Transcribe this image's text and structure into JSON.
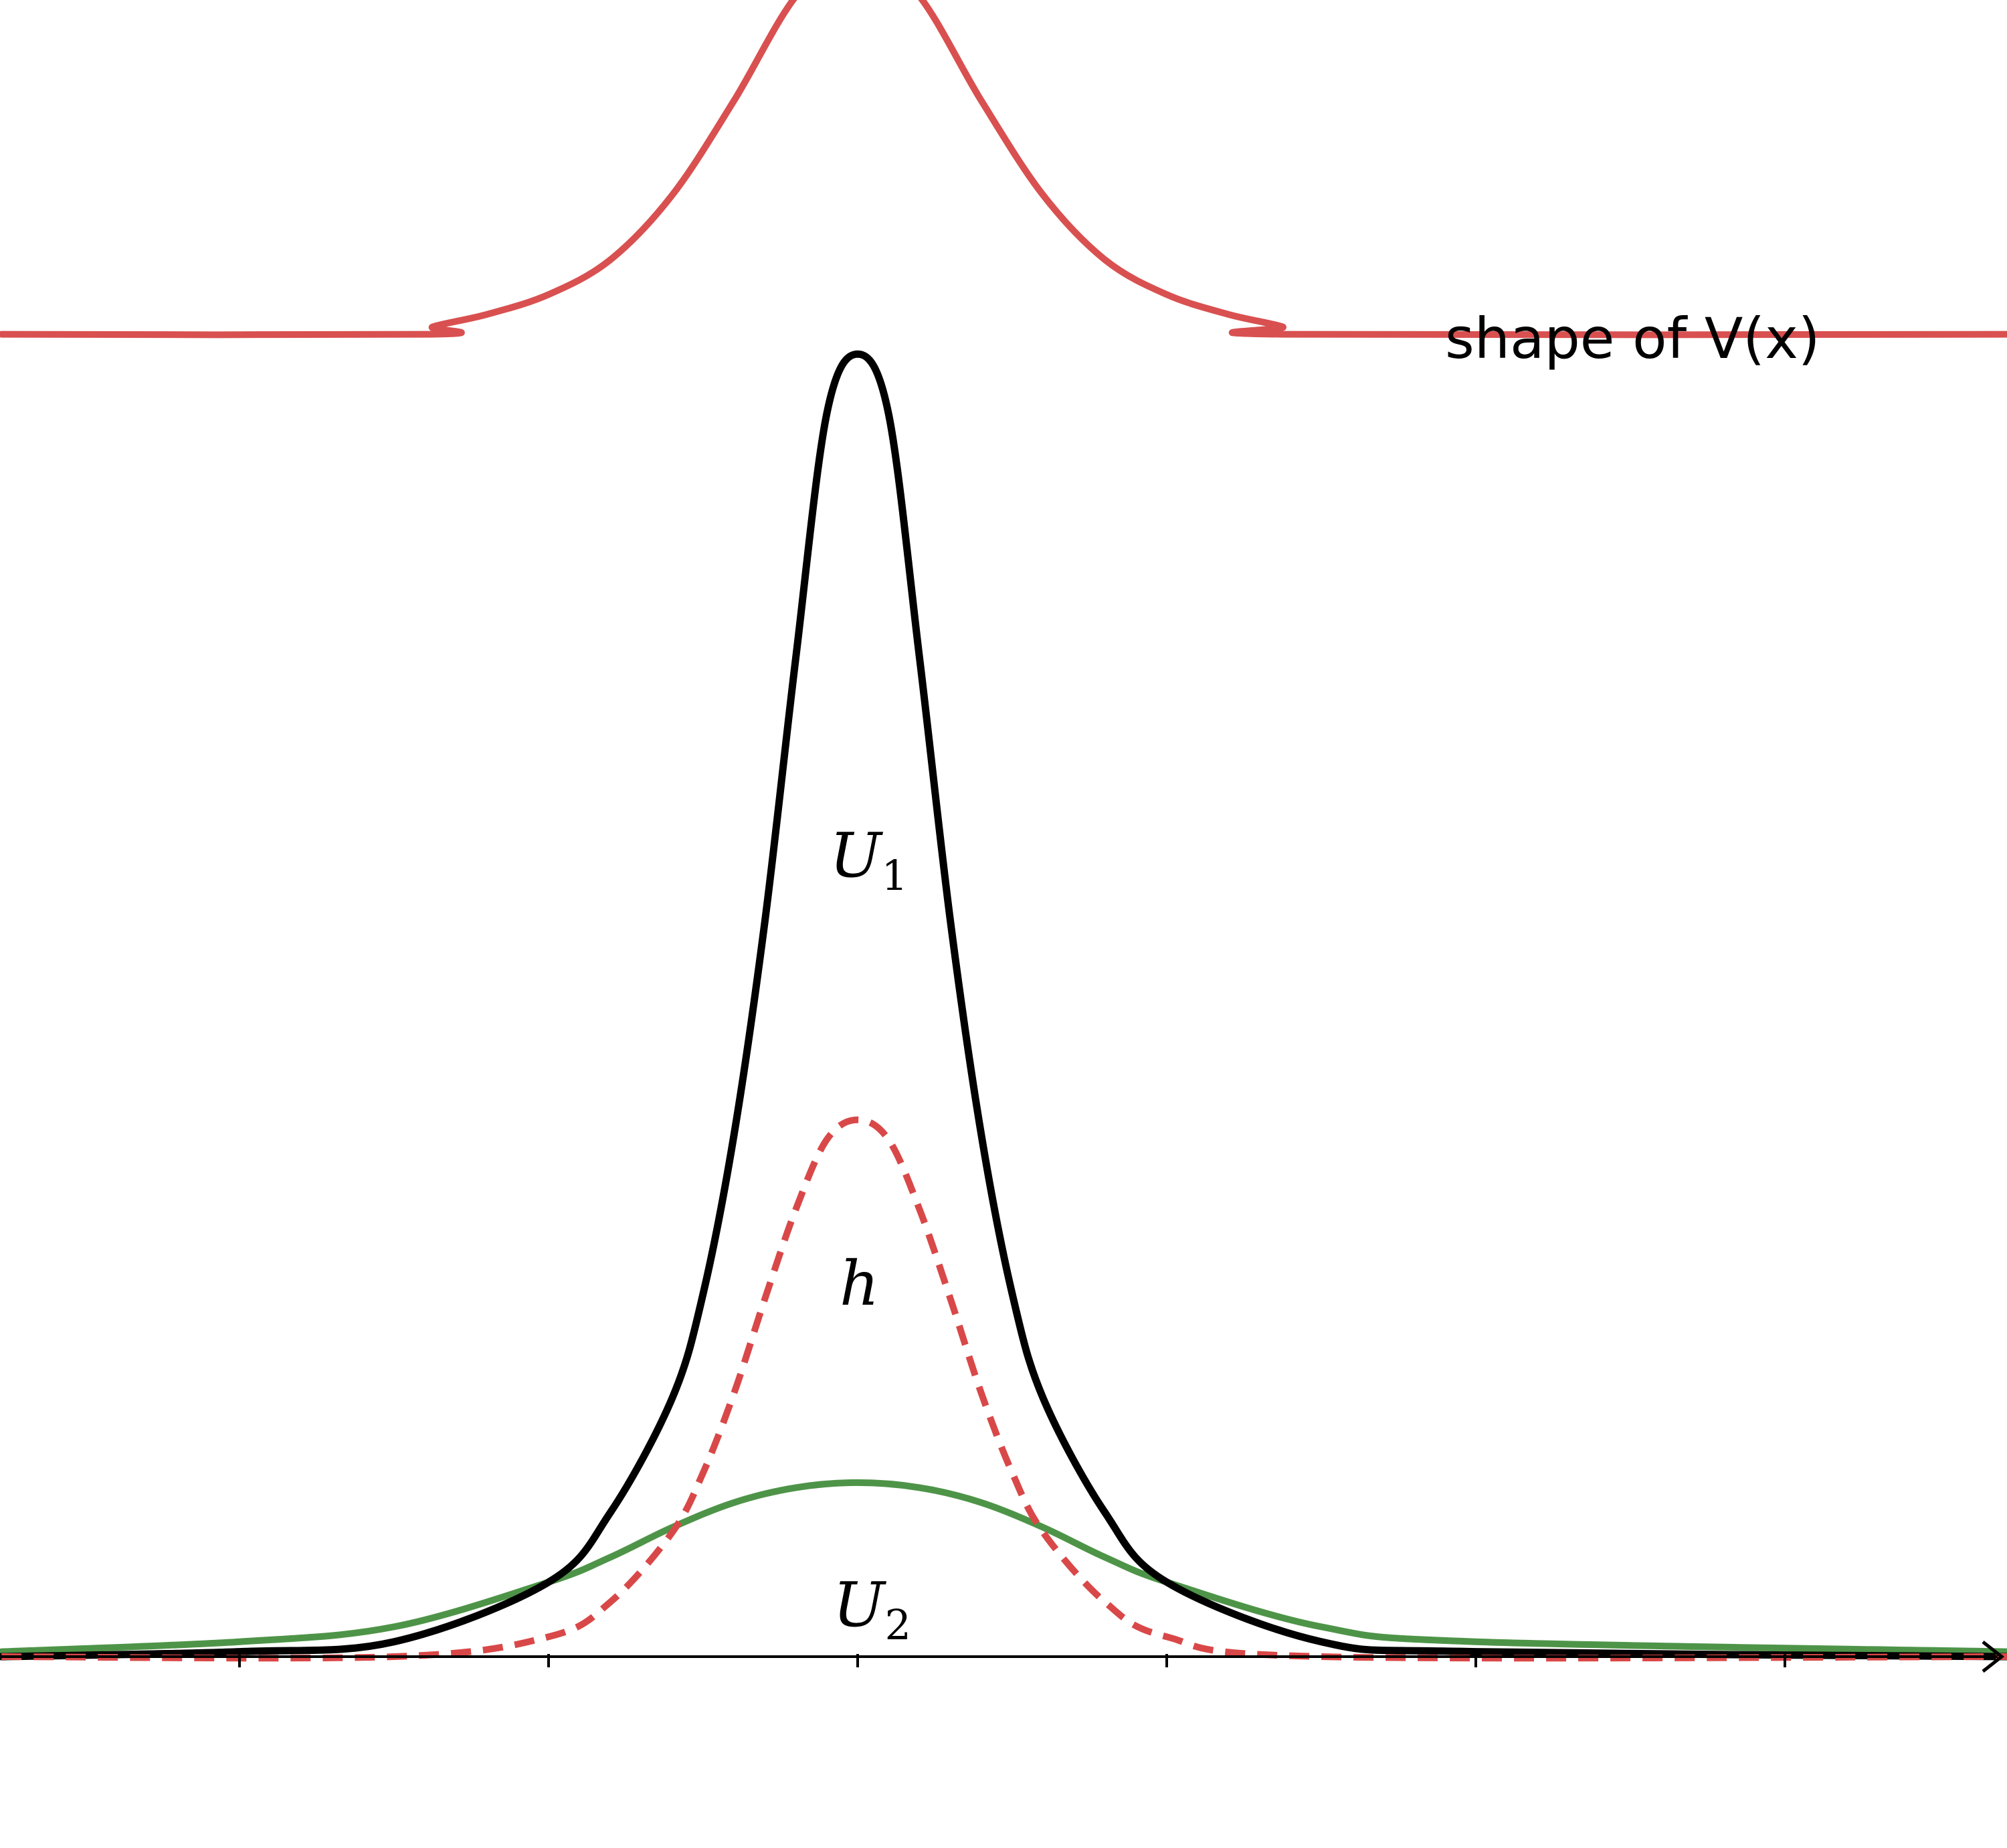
{
  "chart_data": {
    "type": "line",
    "title": "",
    "xlabel": "",
    "ylabel": "",
    "xlim": [
      -2.77,
      3.72
    ],
    "ylim": [
      -0.43,
      3.5
    ],
    "x_ticks": [
      -2,
      -1,
      0,
      1,
      2,
      3
    ],
    "grid": false,
    "annotation": "shape of V(x)",
    "series": [
      {
        "label": "V",
        "role": "potential",
        "color": "#d95050",
        "dash": "solid",
        "x": [
          -2.77,
          -1.38,
          -1.375,
          -1.2,
          -1.0,
          -0.8,
          -0.6,
          -0.4,
          -0.2,
          0.0,
          0.2,
          0.4,
          0.6,
          0.8,
          1.0,
          1.2,
          1.375,
          1.38,
          3.72
        ],
        "y": [
          2.66,
          2.66,
          2.675,
          2.7,
          2.74,
          2.81,
          2.94,
          3.13,
          3.34,
          3.45,
          3.34,
          3.13,
          2.94,
          2.81,
          2.74,
          2.7,
          2.675,
          2.66,
          2.66
        ]
      },
      {
        "label": "U_1",
        "color": "#000000",
        "dash": "solid",
        "x": [
          -2.77,
          -2.0,
          -1.5,
          -1.0,
          -0.8,
          -0.6,
          -0.5,
          -0.4,
          -0.3,
          -0.2,
          -0.1,
          0.0,
          0.1,
          0.2,
          0.3,
          0.4,
          0.5,
          0.6,
          0.8,
          1.0,
          1.5,
          2.0,
          3.72
        ],
        "y": [
          0.0,
          0.01,
          0.03,
          0.15,
          0.29,
          0.52,
          0.73,
          1.05,
          1.48,
          2.01,
          2.5,
          2.62,
          2.5,
          2.01,
          1.48,
          1.05,
          0.73,
          0.52,
          0.29,
          0.15,
          0.03,
          0.01,
          0.0
        ]
      },
      {
        "label": "h",
        "color": "#d94848",
        "dash": "dashed",
        "x": [
          -2.77,
          -1.5,
          -1.0,
          -0.8,
          -0.6,
          -0.5,
          -0.4,
          -0.3,
          -0.2,
          -0.1,
          0.0,
          0.1,
          0.2,
          0.3,
          0.4,
          0.5,
          0.6,
          0.8,
          1.0,
          1.5,
          3.72
        ],
        "y": [
          0.0,
          0.0,
          0.04,
          0.11,
          0.25,
          0.37,
          0.53,
          0.72,
          0.9,
          1.04,
          1.08,
          1.04,
          0.9,
          0.72,
          0.53,
          0.37,
          0.25,
          0.11,
          0.04,
          0.0,
          0.0
        ]
      },
      {
        "label": "U_2",
        "color": "#4e9448",
        "dash": "solid",
        "x": [
          -2.77,
          -2.0,
          -1.5,
          -1.0,
          -0.8,
          -0.6,
          -0.4,
          -0.2,
          0.0,
          0.2,
          0.4,
          0.6,
          0.8,
          1.0,
          1.5,
          2.0,
          3.72
        ],
        "y": [
          0.01,
          0.03,
          0.06,
          0.15,
          0.2,
          0.26,
          0.31,
          0.34,
          0.35,
          0.34,
          0.31,
          0.26,
          0.2,
          0.15,
          0.06,
          0.03,
          0.01
        ]
      }
    ]
  },
  "labels": {
    "u1_text": "U",
    "u1_sub": "1",
    "h_text": "h",
    "u2_text": "U",
    "u2_sub": "2",
    "v_label": "shape of V(x)"
  }
}
